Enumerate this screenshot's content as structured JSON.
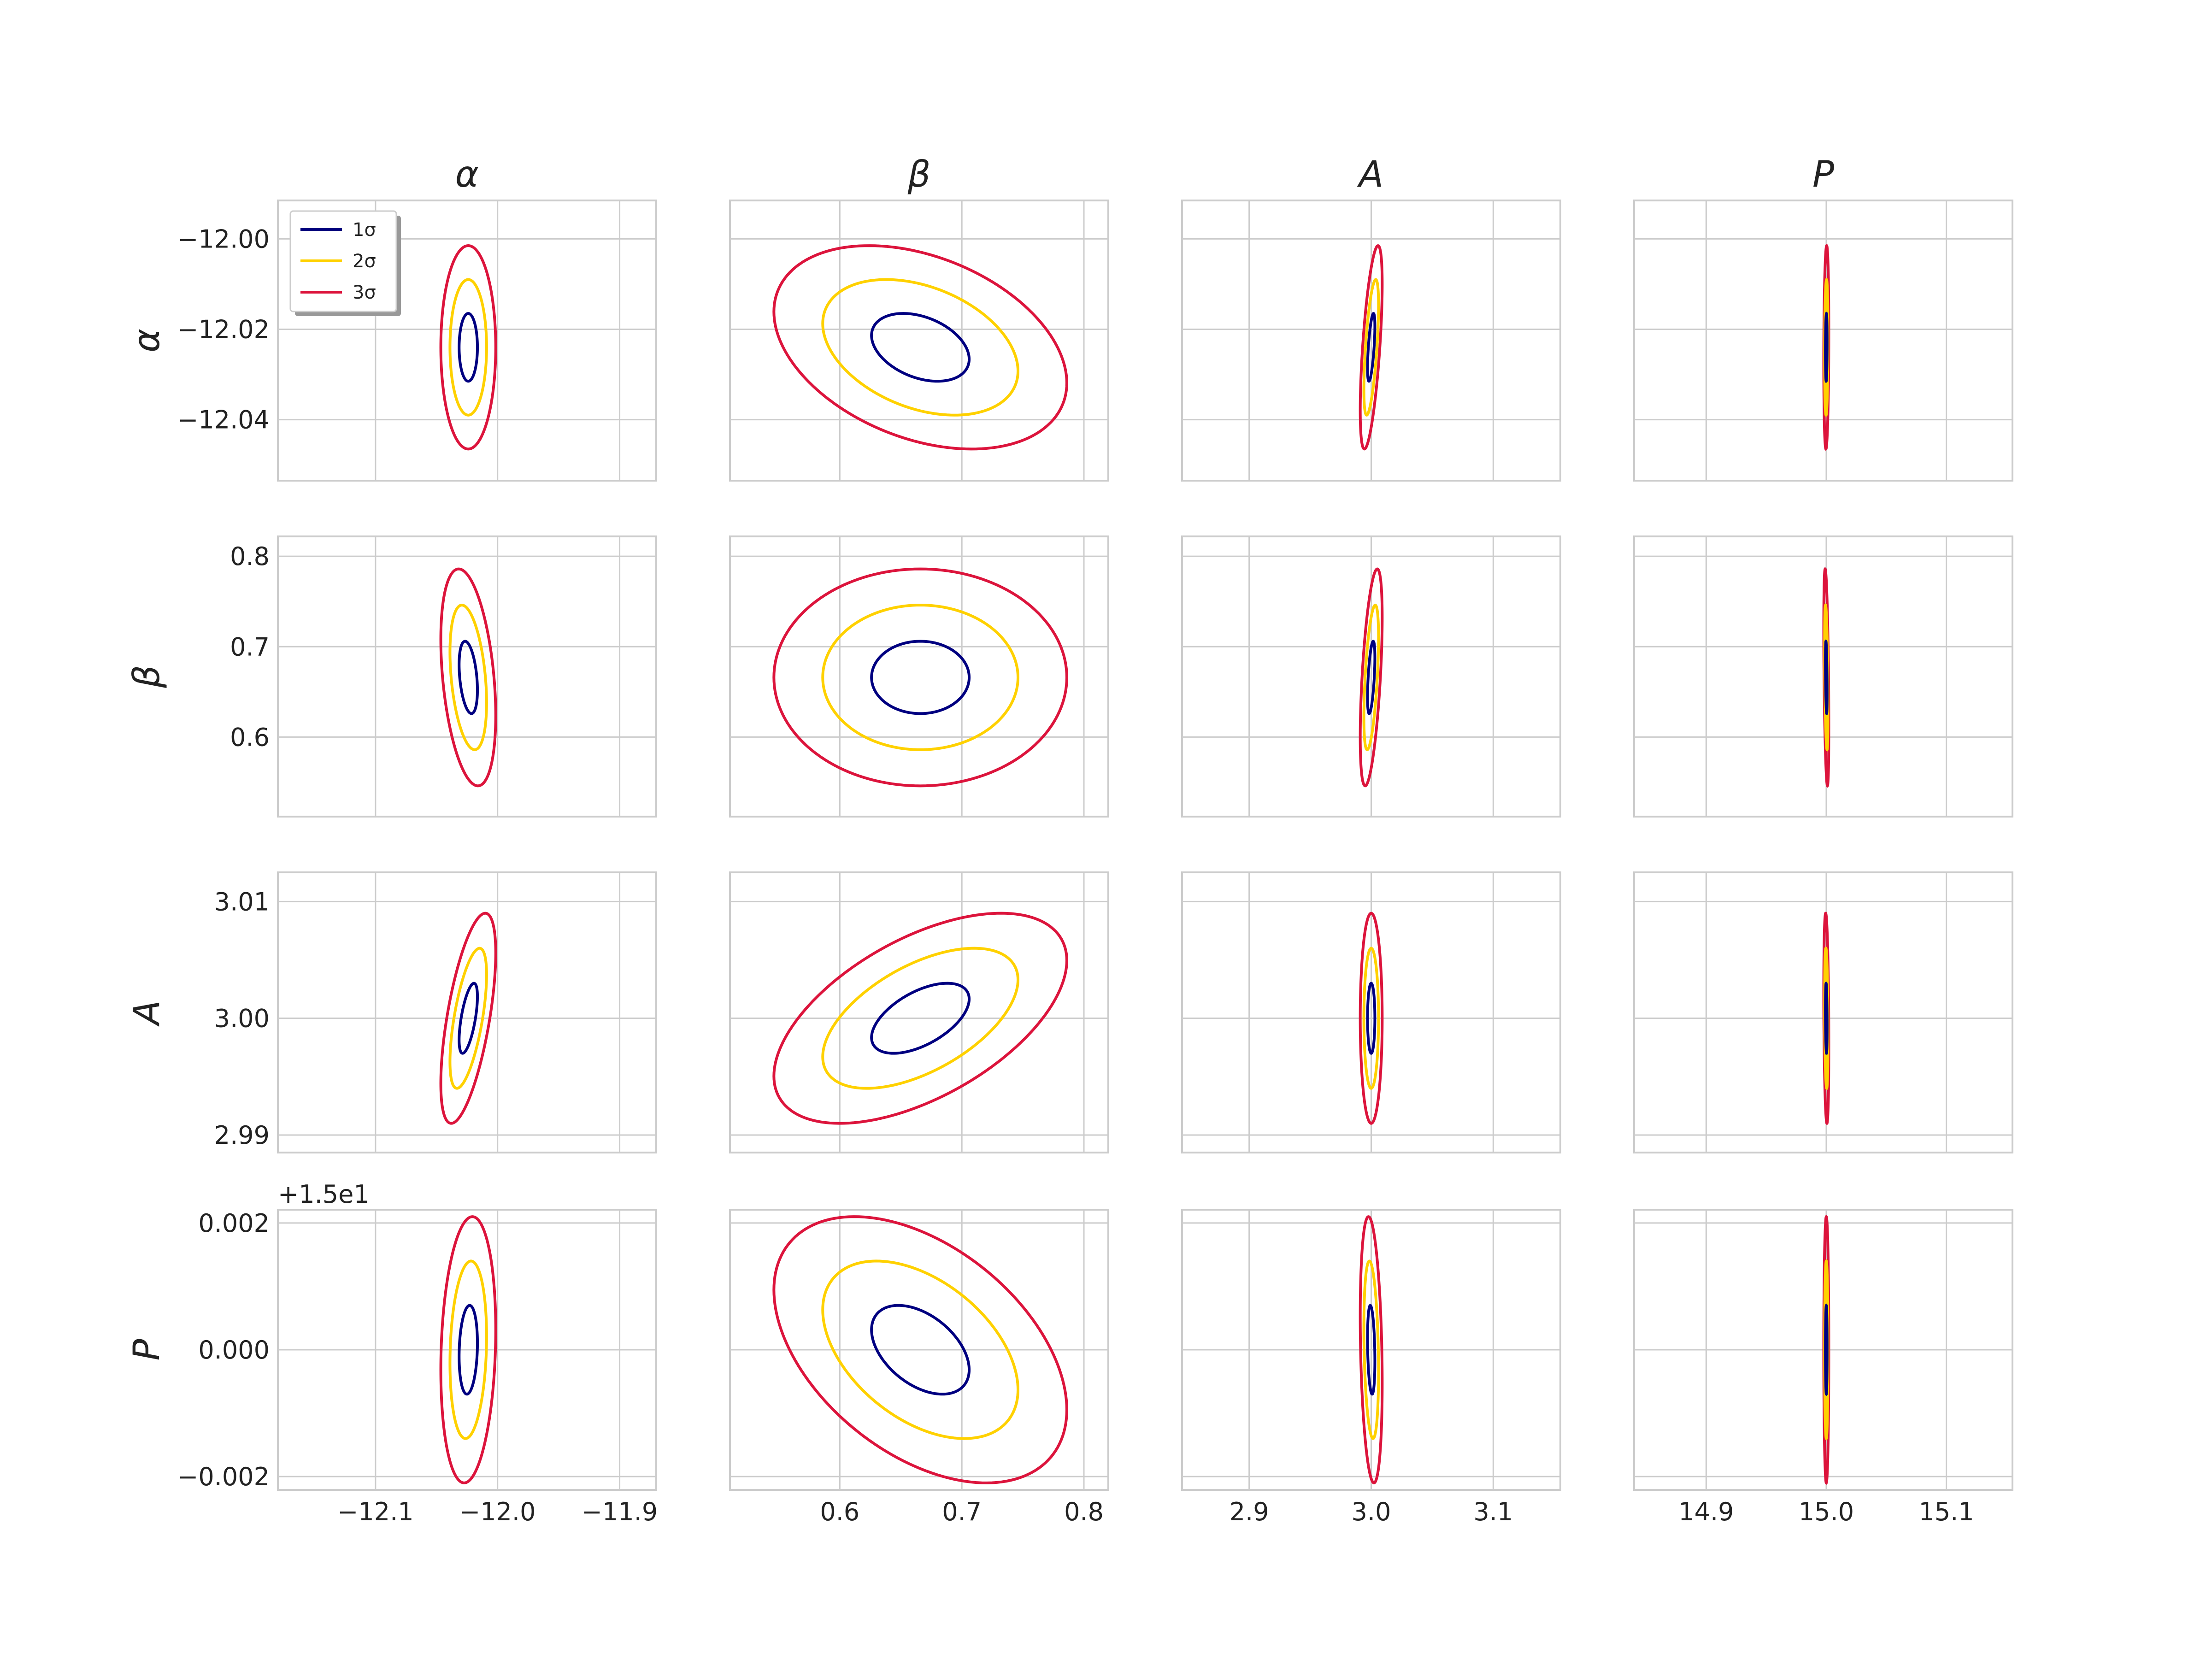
{
  "chart_data": {
    "type": "contour-ellipse-matrix",
    "params": [
      "α",
      "β",
      "A",
      "P"
    ],
    "center": [
      -12.024,
      0.666,
      3.0,
      15.0
    ],
    "sigma": [
      0.0075,
      0.04,
      0.003,
      0.0007
    ],
    "correlation": [
      [
        1.0,
        -0.35,
        0.62,
        0.15
      ],
      [
        -0.35,
        1.0,
        0.55,
        -0.45
      ],
      [
        0.62,
        0.55,
        1.0,
        -0.25
      ],
      [
        0.15,
        -0.45,
        -0.25,
        1.0
      ]
    ],
    "contour_levels": [
      1,
      2,
      3
    ],
    "legend": [
      {
        "label": "1σ",
        "color": "#000080"
      },
      {
        "label": "2σ",
        "color": "#FFD100"
      },
      {
        "label": "3σ",
        "color": "#DC143C"
      }
    ],
    "legend_placement": "upper-left of first panel",
    "grid": true,
    "offset_text": "+1.5e1",
    "column_xlim": [
      [
        -12.18,
        -11.87
      ],
      [
        0.51,
        0.82
      ],
      [
        2.845,
        3.155
      ],
      [
        14.84,
        15.155
      ]
    ],
    "row_ylim": [
      [
        -12.0535,
        -11.9915
      ],
      [
        0.512,
        0.822
      ],
      [
        2.9885,
        3.0125
      ],
      [
        -0.00221,
        0.00221
      ]
    ],
    "column_xticks": [
      {
        "values": [
          -12.1,
          -12.0,
          -11.9
        ],
        "labels": [
          "−12.1",
          "−12.0",
          "−11.9"
        ]
      },
      {
        "values": [
          0.6,
          0.7,
          0.8
        ],
        "labels": [
          "0.6",
          "0.7",
          "0.8"
        ]
      },
      {
        "values": [
          2.9,
          3.0,
          3.1
        ],
        "labels": [
          "2.9",
          "3.0",
          "3.1"
        ]
      },
      {
        "values": [
          14.9,
          15.0,
          15.1
        ],
        "labels": [
          "14.9",
          "15.0",
          "15.1"
        ]
      }
    ],
    "row_yticks": [
      {
        "values": [
          -12.0,
          -12.02,
          -12.04
        ],
        "labels": [
          "−12.00",
          "−12.02",
          "−12.04"
        ]
      },
      {
        "values": [
          0.8,
          0.7,
          0.6
        ],
        "labels": [
          "0.8",
          "0.7",
          "0.6"
        ]
      },
      {
        "values": [
          3.01,
          3.0,
          2.99
        ],
        "labels": [
          "3.01",
          "3.00",
          "2.99"
        ]
      },
      {
        "values": [
          0.002,
          0.0,
          -0.002
        ],
        "labels": [
          "0.002",
          "0.000",
          "−0.002"
        ]
      }
    ]
  }
}
